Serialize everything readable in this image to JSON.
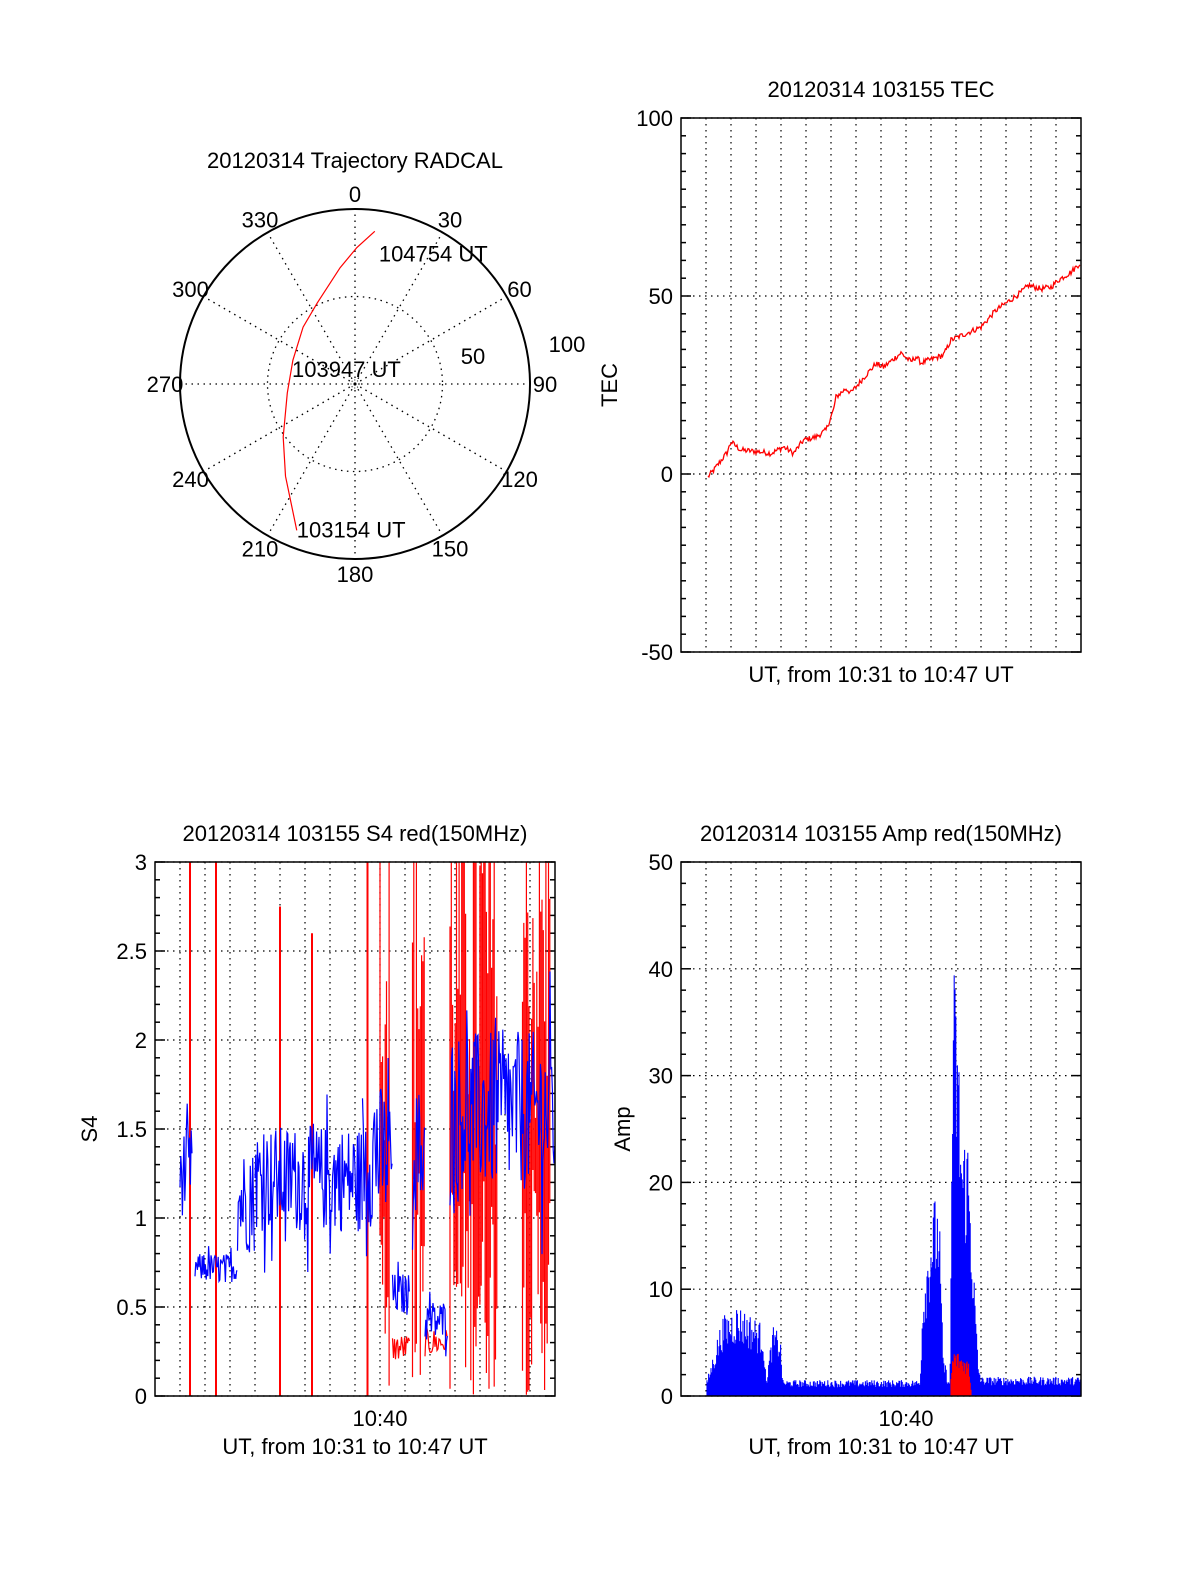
{
  "chart_data": [
    {
      "type": "polar",
      "title": "20120314 Trajectory RADCAL",
      "angle_labels": [
        "0",
        "30",
        "60",
        "90",
        "120",
        "150",
        "180",
        "210",
        "240",
        "270",
        "300",
        "330"
      ],
      "ring_labels": [
        "50",
        "100"
      ],
      "rlim": [
        0,
        100
      ],
      "trajectory_color": "#ff0000",
      "trajectory": {
        "azimuth_deg": [
          201.7,
          217,
          233.6,
          262.5,
          291,
          317.6,
          334.9,
          352.7,
          0.8,
          7.4
        ],
        "r": [
          90,
          66,
          51,
          39,
          38,
          44,
          51,
          67,
          78,
          88
        ]
      },
      "annotations": {
        "start": "103154 UT",
        "middle": "103947 UT",
        "end": "104754 UT"
      }
    },
    {
      "type": "line",
      "title": "20120314 103155 TEC",
      "xlabel": "UT, from 10:31 to 10:47 UT",
      "ylabel": "TEC",
      "xlim_minutes_after_1031": [
        0,
        16
      ],
      "ylim": [
        -50,
        100
      ],
      "yticks": [
        "100",
        "50",
        "0",
        "-50"
      ],
      "ytick_values": [
        100,
        50,
        0,
        -50
      ],
      "grid": true,
      "series": [
        {
          "name": "TEC",
          "color": "#ff0000",
          "t": [
            1.08,
            1.3,
            1.84,
            2.0,
            2.4,
            3.2,
            3.6,
            4.1,
            4.5,
            4.9,
            5.4,
            5.8,
            6.1,
            6.2,
            6.6,
            6.8,
            7.3,
            7.8,
            8.1,
            8.8,
            9.2,
            9.4,
            9.6,
            10.5,
            10.8,
            12.0,
            12.6,
            13.2,
            13.6,
            13.9,
            14.4,
            14.8,
            15.1,
            15.6,
            16.0
          ],
          "values": [
            -0.8,
            1,
            6,
            9,
            6.7,
            6.2,
            5.8,
            7.6,
            5.8,
            9.5,
            10.4,
            12.3,
            18,
            21.6,
            24,
            22.8,
            27,
            31,
            30,
            34,
            31.5,
            33,
            31.2,
            33.4,
            37.6,
            41.3,
            46,
            49,
            51,
            53,
            52,
            52.5,
            54.5,
            56.7,
            59.5
          ]
        }
      ]
    },
    {
      "type": "line",
      "title": "20120314 103155 S4 red(150MHz)",
      "xlabel": "UT, from 10:31 to 10:47 UT",
      "ylabel": "S4",
      "xticks": [
        "10:40"
      ],
      "xtick_minutes_after_1031": [
        9
      ],
      "xlim_minutes_after_1031": [
        0,
        16
      ],
      "ylim": [
        0,
        3
      ],
      "yticks": [
        "3",
        "2.5",
        "2",
        "1.5",
        "1",
        "0.5",
        "0"
      ],
      "ytick_values": [
        3,
        2.5,
        2,
        1.5,
        1,
        0.5,
        0
      ],
      "grid": true,
      "series": [
        {
          "name": "blue",
          "color": "#0000ff",
          "segments_t0_t1_mean_spread": [
            [
              1.0,
              1.5,
              1.26,
              0.25
            ],
            [
              1.6,
              3.3,
              0.72,
              0.08
            ],
            [
              3.3,
              4.0,
              1.1,
              0.3
            ],
            [
              4.0,
              8.3,
              1.22,
              0.3
            ],
            [
              8.3,
              9.5,
              1.35,
              0.4
            ],
            [
              9.5,
              10.2,
              0.57,
              0.12
            ],
            [
              10.3,
              10.8,
              1.38,
              0.35
            ],
            [
              10.8,
              11.7,
              0.42,
              0.12
            ],
            [
              11.8,
              16.0,
              1.6,
              0.45
            ]
          ]
        },
        {
          "name": "red",
          "color": "#ff0000",
          "spikes_t_top": [
            [
              1.4,
              3
            ],
            [
              2.44,
              3
            ],
            [
              5.0,
              2.75
            ],
            [
              6.28,
              2.6
            ],
            [
              8.5,
              3
            ]
          ],
          "bursts_t0_t1": [
            [
              9.0,
              9.4
            ],
            [
              10.3,
              10.8
            ],
            [
              11.8,
              13.7
            ],
            [
              14.7,
              15.8
            ]
          ],
          "low_segments_t0_t1_mean": [
            [
              9.5,
              10.2,
              0.27
            ],
            [
              10.8,
              11.7,
              0.3
            ]
          ]
        }
      ]
    },
    {
      "type": "bar",
      "title": "20120314 103155 Amp red(150MHz)",
      "xlabel": "UT, from 10:31 to 10:47 UT",
      "ylabel": "Amp",
      "xticks": [
        "10:40"
      ],
      "xtick_minutes_after_1031": [
        9
      ],
      "xlim_minutes_after_1031": [
        0,
        16
      ],
      "ylim": [
        0,
        50
      ],
      "yticks": [
        "50",
        "40",
        "30",
        "20",
        "10",
        "0"
      ],
      "ytick_values": [
        50,
        40,
        30,
        20,
        10,
        0
      ],
      "grid": true,
      "series": [
        {
          "name": "blue",
          "color": "#0000ff",
          "envelope_t": [
            1.04,
            1.64,
            2.24,
            3.28,
            3.4,
            3.68,
            3.96,
            4.08,
            9.56,
            9.68,
            10.08,
            10.32,
            10.48,
            10.76,
            10.88,
            11.04,
            11.24,
            11.48,
            11.68,
            11.88,
            12.0,
            16.0
          ],
          "envelope_values": [
            1.5,
            7.4,
            8.7,
            6.8,
            1.5,
            6.5,
            6,
            1.5,
            1.5,
            10.5,
            18.6,
            18.8,
            4,
            1,
            41.8,
            37.4,
            25,
            25,
            14,
            3.4,
            1.8,
            1.8
          ]
        },
        {
          "name": "red",
          "color": "#ff0000",
          "envelope_t": [
            10.8,
            10.9,
            11.2,
            11.5,
            11.6
          ],
          "envelope_values": [
            2,
            4.5,
            4,
            3.5,
            1
          ]
        }
      ]
    }
  ]
}
